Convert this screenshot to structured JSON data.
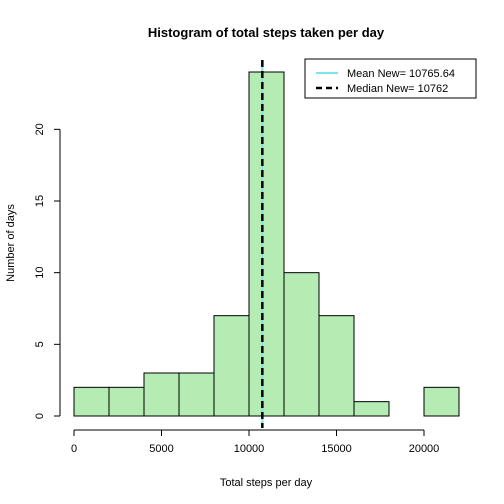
{
  "chart_data": {
    "type": "bar",
    "title": "Histogram of total steps taken per day",
    "xlabel": "Total steps per day",
    "ylabel": "Number of days",
    "bins": [
      {
        "from": 0,
        "to": 2000,
        "count": 2
      },
      {
        "from": 2000,
        "to": 4000,
        "count": 2
      },
      {
        "from": 4000,
        "to": 6000,
        "count": 3
      },
      {
        "from": 6000,
        "to": 8000,
        "count": 3
      },
      {
        "from": 8000,
        "to": 10000,
        "count": 7
      },
      {
        "from": 10000,
        "to": 12000,
        "count": 24
      },
      {
        "from": 12000,
        "to": 14000,
        "count": 10
      },
      {
        "from": 14000,
        "to": 16000,
        "count": 7
      },
      {
        "from": 16000,
        "to": 18000,
        "count": 1
      },
      {
        "from": 18000,
        "to": 20000,
        "count": 0
      },
      {
        "from": 20000,
        "to": 22000,
        "count": 2
      }
    ],
    "xlim": [
      0,
      22000
    ],
    "ylim": [
      0,
      24
    ],
    "x_ticks": [
      0,
      5000,
      10000,
      15000,
      20000
    ],
    "y_ticks": [
      0,
      5,
      10,
      15,
      20
    ],
    "bar_color": "#b4ecb4",
    "mean": 10765.64,
    "median": 10762,
    "mean_color": "#7fe6e6",
    "median_color": "#000000",
    "grid": false,
    "legend": {
      "position": "top-right",
      "entries": [
        {
          "label": "Mean New= 10765.64",
          "style": "solid",
          "color": "#7fe6e6"
        },
        {
          "label": "Median New= 10762",
          "style": "dashed",
          "color": "#000000"
        }
      ]
    }
  }
}
